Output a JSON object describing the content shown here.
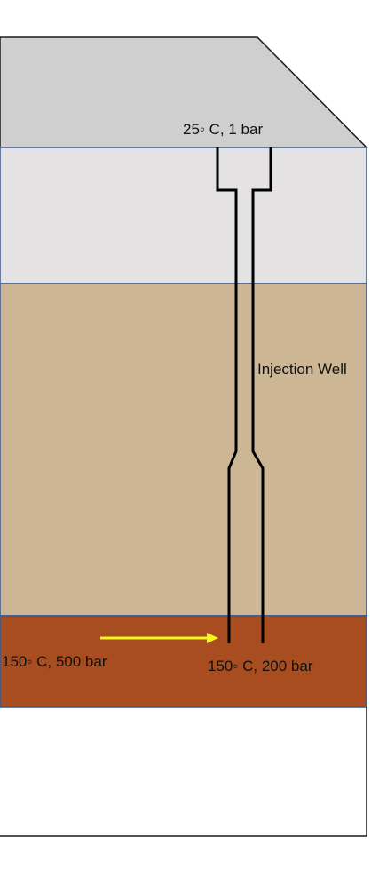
{
  "labels": {
    "surface_condition": "25◦ C, 1 bar",
    "well_name": "Injection Well",
    "reservoir_condition": "150◦ C, 500 bar",
    "wellbottom_condition": "150◦ C, 200 bar"
  },
  "colors": {
    "surface_platform": "#cfcfcf",
    "layer_upper": "#e4e2e2",
    "layer_middle": "#cdb694",
    "reservoir": "#a84d1f",
    "boundary_line": "#3a5788",
    "well_line": "#000000",
    "flow_arrow": "#f5f51e"
  },
  "icons": {
    "flow_arrow": "arrow-right-icon"
  }
}
